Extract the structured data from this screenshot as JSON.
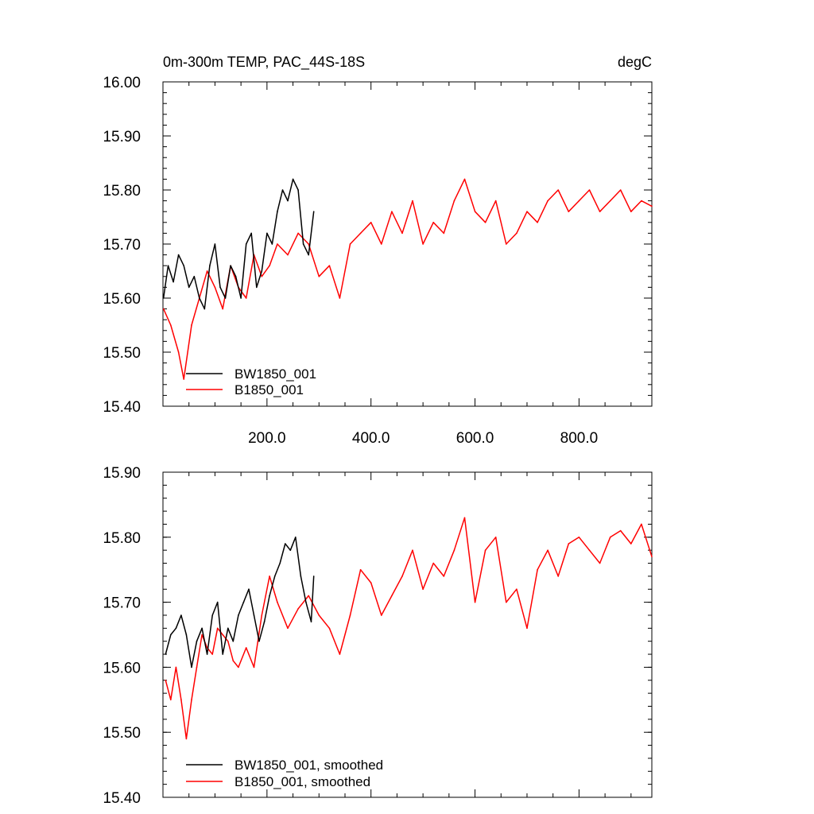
{
  "chart_data": [
    {
      "type": "line",
      "title_left": "0m-300m TEMP, PAC_44S-18S",
      "title_right": "degC",
      "xlabel": "",
      "ylabel": "",
      "xlim": [
        0,
        940
      ],
      "ylim": [
        15.4,
        16.0
      ],
      "xticks": [
        200,
        400,
        600,
        800
      ],
      "xtick_labels": [
        "200.0",
        "400.0",
        "600.0",
        "800.0"
      ],
      "yticks": [
        15.4,
        15.5,
        15.6,
        15.7,
        15.8,
        15.9,
        16.0
      ],
      "ytick_labels": [
        "15.40",
        "15.50",
        "15.60",
        "15.70",
        "15.80",
        "15.90",
        "16.00"
      ],
      "legend": [
        "BW1850_001",
        "B1850_001"
      ],
      "legend_placement": "bottom-left",
      "series": [
        {
          "name": "BW1850_001",
          "color": "#000000",
          "x": [
            1,
            10,
            20,
            30,
            40,
            50,
            60,
            70,
            80,
            90,
            100,
            110,
            120,
            130,
            140,
            150,
            160,
            170,
            180,
            190,
            200,
            210,
            220,
            230,
            240,
            250,
            260,
            270,
            280,
            290
          ],
          "y": [
            15.6,
            15.66,
            15.63,
            15.68,
            15.66,
            15.62,
            15.64,
            15.6,
            15.58,
            15.66,
            15.7,
            15.62,
            15.6,
            15.66,
            15.64,
            15.6,
            15.7,
            15.72,
            15.62,
            15.65,
            15.72,
            15.7,
            15.76,
            15.8,
            15.78,
            15.82,
            15.8,
            15.7,
            15.68,
            15.76
          ]
        },
        {
          "name": "B1850_001",
          "color": "#ff0000",
          "x": [
            1,
            15,
            30,
            40,
            55,
            70,
            85,
            100,
            115,
            130,
            145,
            160,
            175,
            190,
            205,
            220,
            240,
            260,
            280,
            300,
            320,
            340,
            360,
            380,
            400,
            420,
            440,
            460,
            480,
            500,
            520,
            540,
            560,
            580,
            600,
            620,
            640,
            660,
            680,
            700,
            720,
            740,
            760,
            780,
            800,
            820,
            840,
            860,
            880,
            900,
            920,
            940
          ],
          "y": [
            15.58,
            15.55,
            15.5,
            15.45,
            15.55,
            15.6,
            15.65,
            15.62,
            15.58,
            15.66,
            15.62,
            15.6,
            15.68,
            15.64,
            15.66,
            15.7,
            15.68,
            15.72,
            15.7,
            15.64,
            15.66,
            15.6,
            15.7,
            15.72,
            15.74,
            15.7,
            15.76,
            15.72,
            15.78,
            15.7,
            15.74,
            15.72,
            15.78,
            15.82,
            15.76,
            15.74,
            15.78,
            15.7,
            15.72,
            15.76,
            15.74,
            15.78,
            15.8,
            15.76,
            15.78,
            15.8,
            15.76,
            15.78,
            15.8,
            15.76,
            15.78,
            15.77
          ]
        }
      ]
    },
    {
      "type": "line",
      "xlabel": "",
      "ylabel": "",
      "xlim": [
        0,
        940
      ],
      "ylim": [
        15.4,
        15.9
      ],
      "xticks": [
        200,
        400,
        600,
        800
      ],
      "yticks": [
        15.4,
        15.5,
        15.6,
        15.7,
        15.8,
        15.9
      ],
      "ytick_labels": [
        "15.40",
        "15.50",
        "15.60",
        "15.70",
        "15.80",
        "15.90"
      ],
      "legend": [
        "BW1850_001, smoothed",
        "B1850_001, smoothed"
      ],
      "legend_placement": "bottom-left",
      "series": [
        {
          "name": "BW1850_001, smoothed",
          "color": "#000000",
          "x": [
            5,
            15,
            25,
            35,
            45,
            55,
            65,
            75,
            85,
            95,
            105,
            115,
            125,
            135,
            145,
            155,
            165,
            175,
            185,
            195,
            205,
            215,
            225,
            235,
            245,
            255,
            265,
            275,
            285,
            290
          ],
          "y": [
            15.62,
            15.65,
            15.66,
            15.68,
            15.65,
            15.6,
            15.64,
            15.66,
            15.62,
            15.68,
            15.7,
            15.62,
            15.66,
            15.64,
            15.68,
            15.7,
            15.72,
            15.68,
            15.64,
            15.67,
            15.71,
            15.74,
            15.76,
            15.79,
            15.78,
            15.8,
            15.74,
            15.7,
            15.67,
            15.74
          ]
        },
        {
          "name": "B1850_001, smoothed",
          "color": "#ff0000",
          "x": [
            5,
            15,
            25,
            35,
            45,
            55,
            65,
            75,
            85,
            95,
            105,
            115,
            125,
            135,
            145,
            160,
            175,
            190,
            205,
            220,
            240,
            260,
            280,
            300,
            320,
            340,
            360,
            380,
            400,
            420,
            440,
            460,
            480,
            500,
            520,
            540,
            560,
            580,
            600,
            620,
            640,
            660,
            680,
            700,
            720,
            740,
            760,
            780,
            800,
            820,
            840,
            860,
            880,
            900,
            920,
            940
          ],
          "y": [
            15.58,
            15.55,
            15.6,
            15.55,
            15.49,
            15.55,
            15.6,
            15.65,
            15.63,
            15.62,
            15.66,
            15.65,
            15.64,
            15.61,
            15.6,
            15.63,
            15.6,
            15.68,
            15.74,
            15.7,
            15.66,
            15.69,
            15.71,
            15.68,
            15.66,
            15.62,
            15.68,
            15.75,
            15.73,
            15.68,
            15.71,
            15.74,
            15.78,
            15.72,
            15.76,
            15.74,
            15.78,
            15.83,
            15.7,
            15.78,
            15.8,
            15.7,
            15.72,
            15.66,
            15.75,
            15.78,
            15.74,
            15.79,
            15.8,
            15.78,
            15.76,
            15.8,
            15.81,
            15.79,
            15.82,
            15.77
          ]
        }
      ]
    }
  ]
}
